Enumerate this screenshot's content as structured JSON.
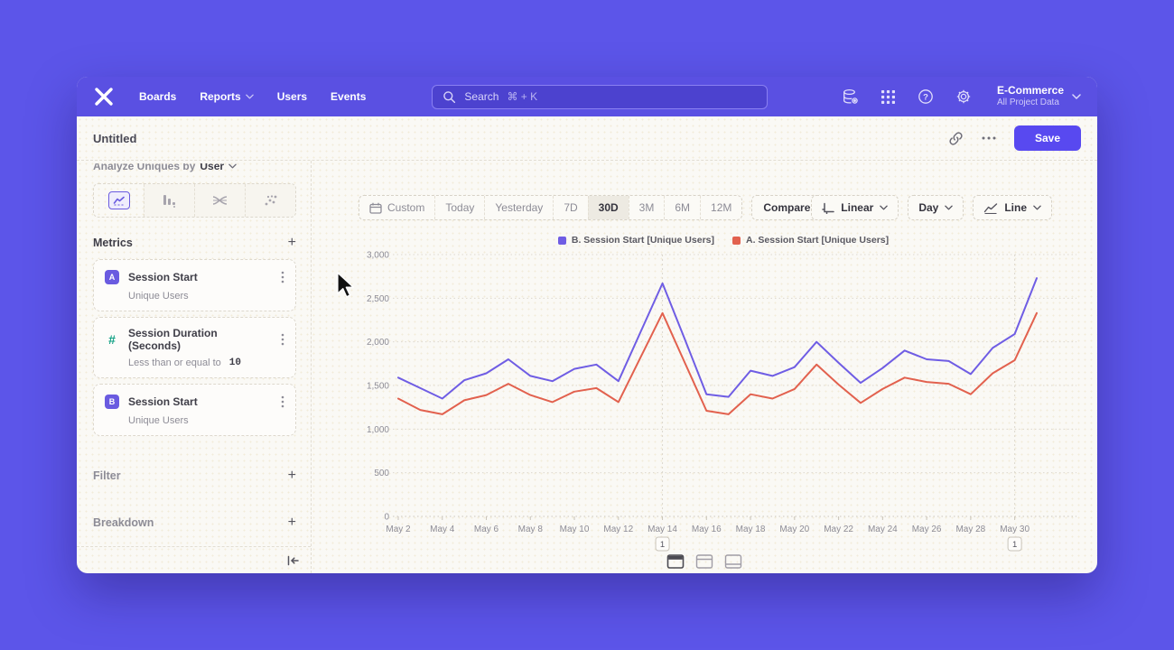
{
  "colors": {
    "nav_bg": "#5a50e2",
    "page_bg": "#5c55e9",
    "content_bg": "#faf9f5",
    "accent": "#5849f0",
    "series_b": "#6f5de4",
    "series_a": "#e2614e",
    "badge_purple": "#6a5be0",
    "badge_green": "#12a184"
  },
  "nav": {
    "logo_icon": "mixpanel-logo",
    "items": [
      {
        "label": "Boards",
        "chevron": false
      },
      {
        "label": "Reports",
        "chevron": true
      },
      {
        "label": "Users",
        "chevron": false
      },
      {
        "label": "Events",
        "chevron": false
      }
    ],
    "search": {
      "label": "Search",
      "shortcut": "⌘ + K",
      "icon": "search-icon"
    },
    "right_icons": [
      "data-management-icon",
      "apps-grid-icon",
      "help-icon",
      "settings-gear-icon"
    ],
    "project": {
      "name": "E-Commerce",
      "scope": "All Project Data"
    }
  },
  "header": {
    "title": "Untitled",
    "icons": [
      "link-icon",
      "ellipsis-icon"
    ],
    "save_label": "Save"
  },
  "sidebar": {
    "analyze": {
      "prefix": "Analyze Uniques by",
      "value": "User"
    },
    "chart_tabs": [
      {
        "icon": "line-chart-icon",
        "active": true
      },
      {
        "icon": "bar-chart-icon",
        "active": false
      },
      {
        "icon": "flow-chart-icon",
        "active": false
      },
      {
        "icon": "scatter-chart-icon",
        "active": false
      }
    ],
    "metrics": {
      "title": "Metrics",
      "add_label": "+",
      "items": [
        {
          "badge": "A",
          "title": "Session Start",
          "subtitle": "Unique Users"
        },
        {
          "badge": "#",
          "title": "Session Duration (Seconds)",
          "subtitle": "Less than or equal to",
          "value": "10"
        },
        {
          "badge": "B",
          "title": "Session Start",
          "subtitle": "Unique Users"
        }
      ]
    },
    "filter": {
      "label": "Filter",
      "add_label": "+"
    },
    "breakdown": {
      "label": "Breakdown",
      "add_label": "+"
    },
    "collapse_icon": "collapse-sidebar-icon"
  },
  "toolbar": {
    "date_ranges": [
      "Custom",
      "Today",
      "Yesterday",
      "7D",
      "30D",
      "3M",
      "6M",
      "12M"
    ],
    "active_range": "30D",
    "compare_label": "Compare",
    "scale_label": "Linear",
    "interval_label": "Day",
    "chart_type_label": "Line"
  },
  "footer_toggles": [
    "split-view-icon",
    "top-panel-view-icon",
    "bottom-panel-view-icon"
  ],
  "chart_data": {
    "type": "line",
    "title": "",
    "xlabel": "",
    "ylabel": "",
    "ylim": [
      0,
      3000
    ],
    "yticks": [
      0,
      500,
      1000,
      1500,
      2000,
      2500,
      3000
    ],
    "grid": true,
    "legend_position": "top",
    "x_label_every": 2,
    "x": [
      "May 2",
      "May 3",
      "May 4",
      "May 5",
      "May 6",
      "May 7",
      "May 8",
      "May 9",
      "May 10",
      "May 11",
      "May 12",
      "May 13",
      "May 14",
      "May 15",
      "May 16",
      "May 17",
      "May 18",
      "May 19",
      "May 20",
      "May 21",
      "May 22",
      "May 23",
      "May 24",
      "May 25",
      "May 26",
      "May 27",
      "May 28",
      "May 29",
      "May 30",
      "May 31"
    ],
    "series": [
      {
        "name": "B. Session Start [Unique Users]",
        "color": "#6f5de4",
        "values": [
          1590,
          1470,
          1350,
          1560,
          1640,
          1800,
          1610,
          1550,
          1690,
          1740,
          1550,
          2110,
          2670,
          2040,
          1400,
          1370,
          1670,
          1610,
          1710,
          2000,
          1760,
          1530,
          1700,
          1900,
          1800,
          1780,
          1630,
          1930,
          2090,
          2730
        ]
      },
      {
        "name": "A. Session Start [Unique Users]",
        "color": "#e2614e",
        "values": [
          1350,
          1220,
          1170,
          1330,
          1390,
          1520,
          1390,
          1310,
          1430,
          1470,
          1310,
          1820,
          2330,
          1770,
          1210,
          1170,
          1400,
          1350,
          1460,
          1740,
          1510,
          1300,
          1460,
          1590,
          1540,
          1520,
          1400,
          1640,
          1790,
          2330
        ]
      }
    ],
    "annotations": [
      {
        "index": 12,
        "x": "May 14",
        "label": "1"
      },
      {
        "index": 28,
        "x": "May 30",
        "label": "1"
      }
    ]
  }
}
